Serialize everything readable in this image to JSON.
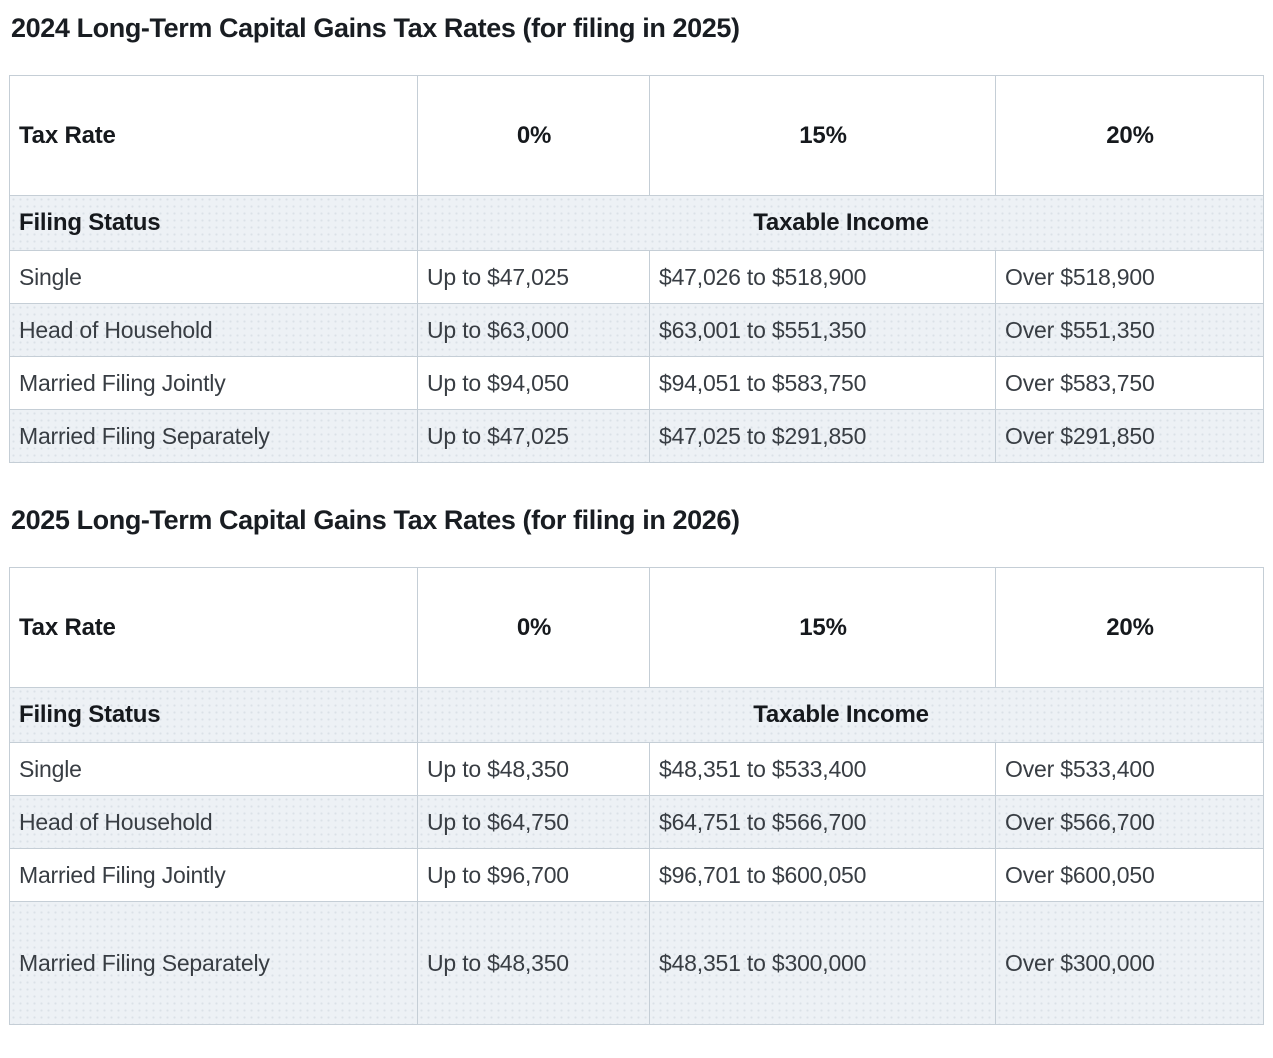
{
  "page": {
    "background_color": "#ffffff",
    "stripe_color": "#edf1f5",
    "border_color": "#c5ced6",
    "title_color": "#191d22",
    "body_text_color": "#383d43"
  },
  "tables": [
    {
      "title": "2024 Long-Term Capital Gains Tax Rates (for filing in 2025)",
      "header": {
        "tax_rate_label": "Tax Rate",
        "rates": [
          "0%",
          "15%",
          "20%"
        ]
      },
      "subheader": {
        "filing_status_label": "Filing Status",
        "taxable_income_label": "Taxable Income"
      },
      "rows": [
        {
          "status": "Single",
          "rate0": "Up to $47,025",
          "rate15": "$47,026 to $518,900",
          "rate20": "Over $518,900"
        },
        {
          "status": "Head of Household",
          "rate0": "Up to $63,000",
          "rate15": "$63,001 to $551,350",
          "rate20": "Over $551,350"
        },
        {
          "status": "Married Filing Jointly",
          "rate0": "Up to $94,050",
          "rate15": "$94,051 to $583,750",
          "rate20": "Over $583,750"
        },
        {
          "status": "Married Filing Separately",
          "rate0": "Up to $47,025",
          "rate15": "$47,025 to $291,850",
          "rate20": "Over $291,850"
        }
      ]
    },
    {
      "title": "2025 Long-Term Capital Gains Tax Rates (for filing in 2026)",
      "header": {
        "tax_rate_label": "Tax Rate",
        "rates": [
          "0%",
          "15%",
          "20%"
        ]
      },
      "subheader": {
        "filing_status_label": "Filing Status",
        "taxable_income_label": "Taxable Income"
      },
      "rows": [
        {
          "status": "Single",
          "rate0": "Up to $48,350",
          "rate15": "$48,351 to $533,400",
          "rate20": "Over $533,400"
        },
        {
          "status": "Head of Household",
          "rate0": "Up to $64,750",
          "rate15": "$64,751 to $566,700",
          "rate20": "Over $566,700"
        },
        {
          "status": "Married Filing Jointly",
          "rate0": "Up to $96,700",
          "rate15": "$96,701 to $600,050",
          "rate20": "Over $600,050"
        },
        {
          "status": "Married Filing Separately",
          "rate0": "Up to $48,350",
          "rate15": "$48,351 to $300,000",
          "rate20": "Over $300,000"
        }
      ]
    }
  ]
}
